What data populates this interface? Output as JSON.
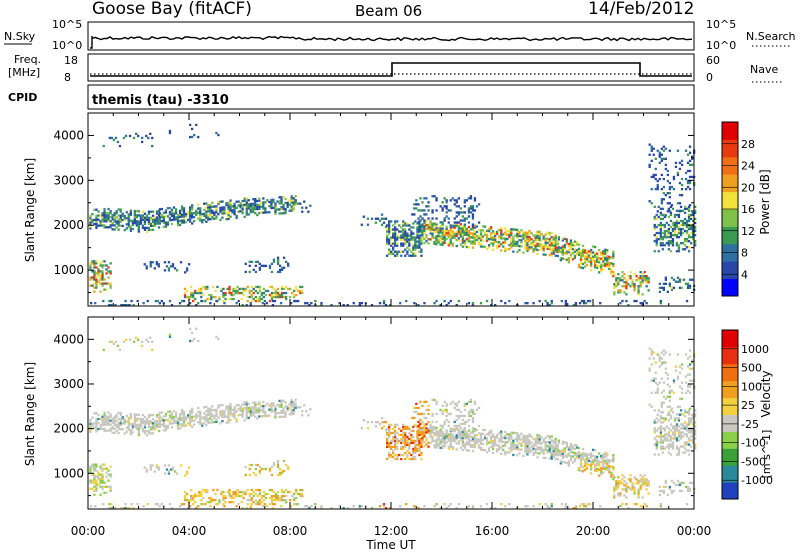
{
  "header": {
    "station": "Goose Bay (fitACF)",
    "beam": "Beam 06",
    "date": "14/Feb/2012"
  },
  "top_panels": {
    "nsky_label": "N.Sky",
    "nsky_ticks": [
      "10^5",
      "10^0"
    ],
    "nsearch_label": "N.Search",
    "nsearch_ticks": [
      "10^5",
      "10^0"
    ],
    "freq_label": "Freq.",
    "freq_unit": "[MHz]",
    "freq_ticks": [
      "18",
      "8"
    ],
    "nave_label": "Nave",
    "nave_ticks": [
      "60",
      "0"
    ],
    "cpid_label": "CPID",
    "cpid_value": "themis (tau) -3310"
  },
  "chart_data": [
    {
      "type": "heatmap",
      "name": "power-panel",
      "ylabel": "Slant Range [km]",
      "ylim": [
        200,
        4500
      ],
      "yticks": [
        "4000",
        "3000",
        "2000",
        "1000"
      ],
      "xlim": [
        0,
        24
      ],
      "colorbar": {
        "label": "Power [dB]",
        "ticks": [
          "28",
          "24",
          "20",
          "16",
          "12",
          "8",
          "4"
        ],
        "colors": [
          "#0000ff",
          "#2a46a8",
          "#2d6fa0",
          "#3a9a52",
          "#7fc24a",
          "#f2e23a",
          "#f0a020",
          "#f07018",
          "#e83a10",
          "#e00000"
        ]
      }
    },
    {
      "type": "heatmap",
      "name": "velocity-panel",
      "ylabel": "Slant Range [km]",
      "ylim": [
        200,
        4500
      ],
      "yticks": [
        "4000",
        "3000",
        "2000",
        "1000"
      ],
      "xlim": [
        0,
        24
      ],
      "xticks": [
        "00:00",
        "04:00",
        "08:00",
        "12:00",
        "16:00",
        "20:00",
        "00:00"
      ],
      "xlabel": "Time UT",
      "colorbar": {
        "label": "Velocity",
        "unit": "[m s^-1]",
        "ticks": [
          "1000",
          "500",
          "100",
          "25",
          "-25",
          "-100",
          "-500",
          "-1000"
        ],
        "colors": [
          "#2040c0",
          "#2a8a9a",
          "#3aa03a",
          "#8ad04a",
          "#c8c8c0",
          "#f2d040",
          "#f0a020",
          "#f07010",
          "#e83010",
          "#e00000"
        ]
      }
    }
  ]
}
